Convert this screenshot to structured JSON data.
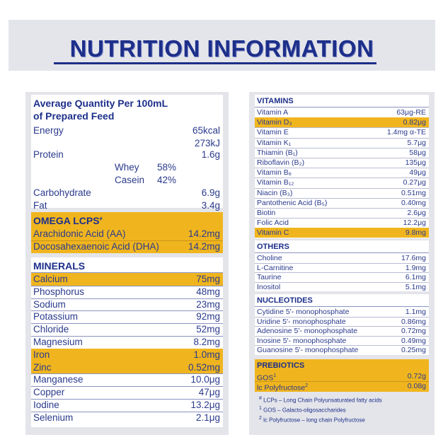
{
  "title": "NUTRITION INFORMATION",
  "left": {
    "header_line1": "Average Quantity Per 100mL",
    "header_line2": "of Prepared Feed",
    "energy": {
      "label": "Energy",
      "kcal": "65kcal",
      "kj": "273kJ"
    },
    "protein": {
      "label": "Protein",
      "value": "1.6g"
    },
    "whey": {
      "label": "Whey",
      "value": "58%"
    },
    "casein": {
      "label": "Casein",
      "value": "42%"
    },
    "carbohydrate": {
      "label": "Carbohydrate",
      "value": "6.9g"
    },
    "fat": {
      "label": "Fat",
      "value": "3.4g"
    },
    "omega": {
      "heading": "OMEGA LCPS",
      "heading_sup": "#",
      "rows": [
        {
          "label": "Arachidonic Acid (AA)",
          "value": "14.2mg"
        },
        {
          "label": "Docosahexaenoic Acid (DHA)",
          "value": "14.2mg"
        }
      ]
    },
    "minerals": {
      "heading": "MINERALS",
      "rows": [
        {
          "label": "Calcium",
          "value": "75mg"
        },
        {
          "label": "Phosphorus",
          "value": "48mg"
        },
        {
          "label": "Sodium",
          "value": "23mg"
        },
        {
          "label": "Potassium",
          "value": "92mg"
        },
        {
          "label": "Chloride",
          "value": "52mg"
        },
        {
          "label": "Magnesium",
          "value": "8.2mg"
        },
        {
          "label": "Iron",
          "value": "1.0mg"
        },
        {
          "label": "Zinc",
          "value": "0.52mg"
        },
        {
          "label": "Manganese",
          "value": "10.0μg"
        },
        {
          "label": "Copper",
          "value": "47μg"
        },
        {
          "label": "Iodine",
          "value": "13.2μg"
        },
        {
          "label": "Selenium",
          "value": "2.1μg"
        }
      ]
    }
  },
  "right": {
    "vitamins": {
      "heading": "VITAMINS",
      "rows": [
        {
          "label": "Vitamin A",
          "value": "63μg-RE"
        },
        {
          "label": "Vitamin D₃",
          "value": "0.82μg"
        },
        {
          "label": "Vitamin E",
          "value": "1.4mg α-TE"
        },
        {
          "label": "Vitamin K₁",
          "value": "5.7μg"
        },
        {
          "label": "Thiamin (B₁)",
          "value": "58μg"
        },
        {
          "label": "Riboflavin (B₂)",
          "value": "135μg"
        },
        {
          "label": "Vitamin B₆",
          "value": "49μg"
        },
        {
          "label": "Vitamin B₁₂",
          "value": "0.27μg"
        },
        {
          "label": "Niacin (B₃)",
          "value": "0.51mg"
        },
        {
          "label": "Pantothenic Acid (B₅)",
          "value": "0.40mg"
        },
        {
          "label": "Biotin",
          "value": "2.6μg"
        },
        {
          "label": "Folic Acid",
          "value": "12.2μg"
        },
        {
          "label": "Vitamin C",
          "value": "9.8mg"
        }
      ]
    },
    "others": {
      "heading": "OTHERS",
      "rows": [
        {
          "label": "Choline",
          "value": "17.6mg"
        },
        {
          "label": "L-Carnitine",
          "value": "1.9mg"
        },
        {
          "label": "Taurine",
          "value": "6.1mg"
        },
        {
          "label": "Inositol",
          "value": "5.1mg"
        }
      ]
    },
    "nucleotides": {
      "heading": "NUCLEOTIDES",
      "rows": [
        {
          "label": "Cytidine 5'- monophosphate",
          "value": "1.1mg"
        },
        {
          "label": "Uridine 5'- monophosphate",
          "value": "0.86mg"
        },
        {
          "label": "Adenosine 5'- monophosphate",
          "value": "0.72mg"
        },
        {
          "label": "Inosine 5'- monophosphate",
          "value": "0.49mg"
        },
        {
          "label": "Guanosine 5'- monophosphate",
          "value": "0.25mg"
        }
      ]
    },
    "prebiotics": {
      "heading": "PREBIOTICS",
      "rows": [
        {
          "label": "GOS",
          "sup": "1",
          "value": "0.72g"
        },
        {
          "label": "lc Polyfructose",
          "sup": "2",
          "value": "0.08g"
        }
      ]
    },
    "footnotes": [
      {
        "mark": "#",
        "text": "LCPs – Long Chain Polyunsaturated fatty acids"
      },
      {
        "mark": "1",
        "text": "GOS – Galacto-oligosaccharides"
      },
      {
        "mark": "2",
        "text": "lc Polyfructose – long chain Polyfructose"
      }
    ]
  },
  "colors": {
    "navy": "#1d2f8a",
    "highlight": "#f0b51e",
    "panel": "#e4e5ea"
  }
}
